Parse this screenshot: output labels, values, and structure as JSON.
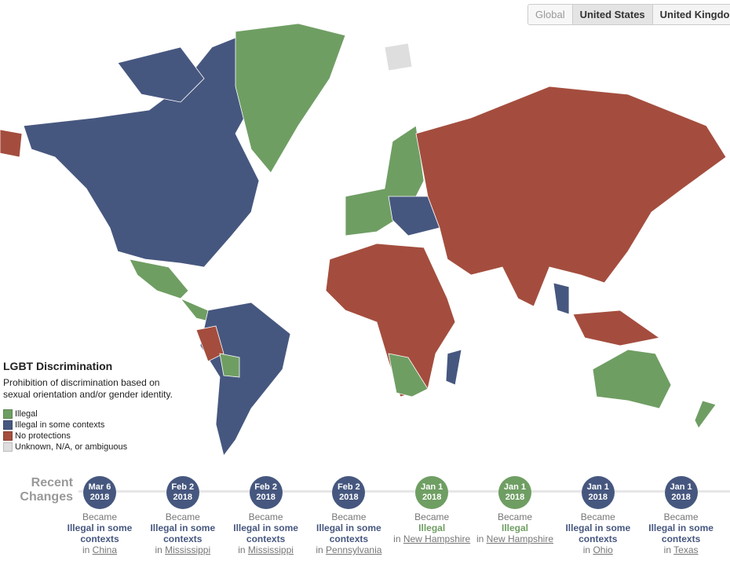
{
  "tabs": [
    "Global",
    "United States",
    "United Kingdom"
  ],
  "selected_tab": "United States",
  "legend": {
    "title": "LGBT Discrimination",
    "description": "Prohibition of discrimination based on sexual orientation and/or gender identity.",
    "items": [
      {
        "label": "Illegal",
        "color": "#6f9e63"
      },
      {
        "label": "Illegal in some contexts",
        "color": "#46577f"
      },
      {
        "label": "No protections",
        "color": "#a44d3e"
      },
      {
        "label": "Unknown, N/A, or ambiguous",
        "color": "#dedede"
      }
    ]
  },
  "recent_changes": {
    "title": "Recent Changes",
    "items": [
      {
        "date": "Mar 6",
        "year": "2018",
        "verb": "Became",
        "status": "Illegal in some contexts",
        "prep": "in",
        "place": "China"
      },
      {
        "date": "Feb 2",
        "year": "2018",
        "verb": "Became",
        "status": "Illegal in some contexts",
        "prep": "in",
        "place": "Mississippi"
      },
      {
        "date": "Feb 2",
        "year": "2018",
        "verb": "Became",
        "status": "Illegal in some contexts",
        "prep": "in",
        "place": "Mississippi"
      },
      {
        "date": "Feb 2",
        "year": "2018",
        "verb": "Became",
        "status": "Illegal in some contexts",
        "prep": "in",
        "place": "Pennsylvania"
      },
      {
        "date": "Jan 1",
        "year": "2018",
        "verb": "Became",
        "status": "Illegal",
        "prep": "in",
        "place": "New Hampshire"
      },
      {
        "date": "Jan 1",
        "year": "2018",
        "verb": "Became",
        "status": "Illegal",
        "prep": "in",
        "place": "New Hampshire"
      },
      {
        "date": "Jan 1",
        "year": "2018",
        "verb": "Became",
        "status": "Illegal in some contexts",
        "prep": "in",
        "place": "Ohio"
      },
      {
        "date": "Jan 1",
        "year": "2018",
        "verb": "Became",
        "status": "Illegal in some contexts",
        "prep": "in",
        "place": "Texas"
      }
    ]
  }
}
